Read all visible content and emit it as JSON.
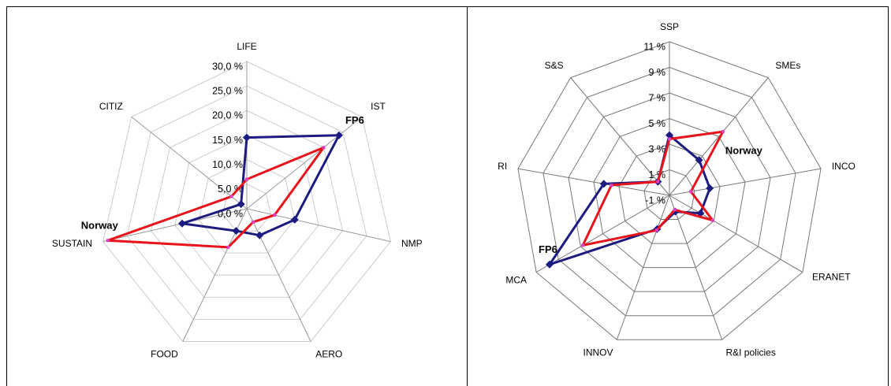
{
  "chart_data": [
    {
      "type": "radar",
      "categories": [
        "LIFE",
        "IST",
        "NMP",
        "AERO",
        "FOOD",
        "SUSTAIN",
        "CITIZ"
      ],
      "series": [
        {
          "name": "FP6",
          "color": "#1c1c80",
          "values": [
            14.5,
            24,
            10,
            6,
            5,
            13.5,
            1.5
          ]
        },
        {
          "name": "Norway",
          "color": "#e8141c",
          "values": [
            6,
            20,
            5.8,
            3,
            8.7,
            29,
            4
          ]
        }
      ],
      "ylim": [
        0,
        30
      ],
      "yticks": [
        {
          "value": 0,
          "label": "0,0 %"
        },
        {
          "value": 5,
          "label": "5,0 %"
        },
        {
          "value": 10,
          "label": "10,0 %"
        },
        {
          "value": 15,
          "label": "15,0 %"
        },
        {
          "value": 20,
          "label": "20,0 %"
        },
        {
          "value": 25,
          "label": "25,0 %"
        },
        {
          "value": 30,
          "label": "30,0 %"
        }
      ]
    },
    {
      "type": "radar",
      "categories": [
        "SSP",
        "SMEs",
        "INCO",
        "ERANET",
        "R&I policies",
        "INNOV",
        "MCA",
        "RI",
        "S&S"
      ],
      "series": [
        {
          "name": "FP6",
          "color": "#1c1c80",
          "values": [
            3.7,
            2.6,
            2.2,
            1.8,
            0.35,
            1.8,
            9.8,
            4.2,
            0.4
          ]
        },
        {
          "name": "Norway",
          "color": "#e8141c",
          "values": [
            3.4,
            5.5,
            0.7,
            2.9,
            0.2,
            1.9,
            6.8,
            3.6,
            0.4
          ]
        }
      ],
      "ylim": [
        -1,
        11
      ],
      "yticks": [
        {
          "value": -1,
          "label": "-1 %"
        },
        {
          "value": 1,
          "label": "1 %"
        },
        {
          "value": 3,
          "label": "3 %"
        },
        {
          "value": 5,
          "label": "5 %"
        },
        {
          "value": 7,
          "label": "7 %"
        },
        {
          "value": 9,
          "label": "9 %"
        },
        {
          "value": 11,
          "label": "11 %"
        }
      ]
    }
  ]
}
